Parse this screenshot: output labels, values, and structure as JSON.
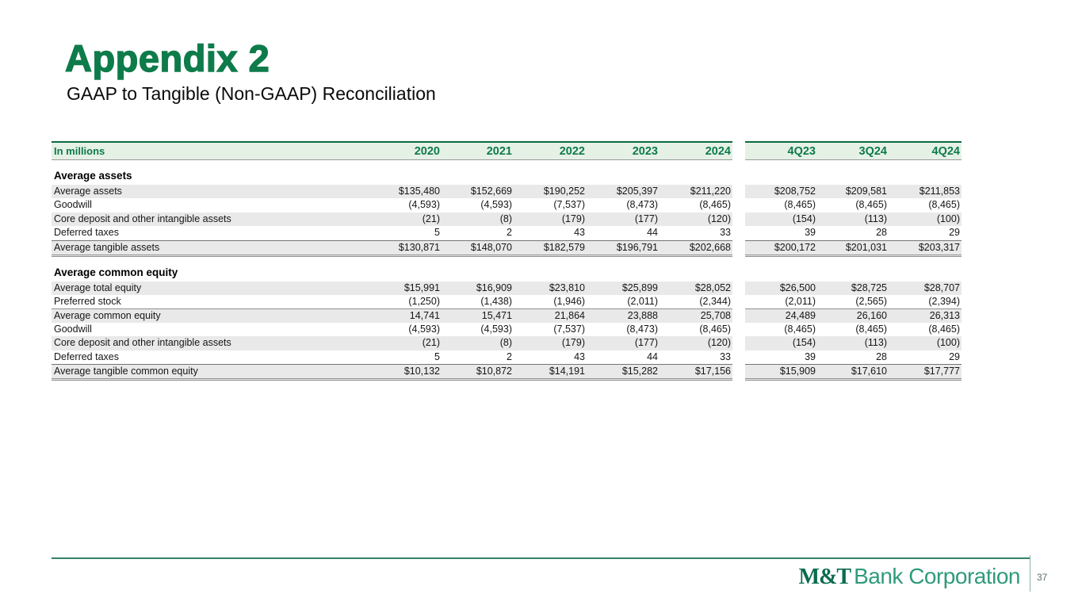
{
  "slide": {
    "title": "Appendix 2",
    "subtitle": "GAAP to Tangible (Non-GAAP) Reconciliation",
    "page_number": "37",
    "logo_mt": "M&T",
    "logo_rest": "Bank Corporation"
  },
  "colors": {
    "brand_green": "#0e7b4b",
    "header_band_bg": "#e6f1e6",
    "header_band_border": "#0b6b42",
    "row_stripe": "#e9e9e9",
    "logo_green": "#2f9b7b",
    "footer_line_green": "#31836a"
  },
  "table": {
    "unit_label": "In millions",
    "columns": [
      "2020",
      "2021",
      "2022",
      "2023",
      "2024",
      "4Q23",
      "3Q24",
      "4Q24"
    ],
    "sections": [
      {
        "heading": "Average assets",
        "rows": [
          {
            "label": "Average assets",
            "style": "shaded",
            "values": [
              "$135,480",
              "$152,669",
              "$190,252",
              "$205,397",
              "$211,220",
              "$208,752",
              "$209,581",
              "$211,853"
            ]
          },
          {
            "label": "Goodwill",
            "style": "plain",
            "values": [
              "(4,593)",
              "(4,593)",
              "(7,537)",
              "(8,473)",
              "(8,465)",
              "(8,465)",
              "(8,465)",
              "(8,465)"
            ]
          },
          {
            "label": "Core deposit and other intangible assets",
            "style": "shaded",
            "values": [
              "(21)",
              "(8)",
              "(179)",
              "(177)",
              "(120)",
              "(154)",
              "(113)",
              "(100)"
            ]
          },
          {
            "label": "Deferred taxes",
            "style": "plain",
            "values": [
              "5",
              "2",
              "43",
              "44",
              "33",
              "39",
              "28",
              "29"
            ]
          },
          {
            "label": "Average tangible assets",
            "style": "total",
            "values": [
              "$130,871",
              "$148,070",
              "$182,579",
              "$196,791",
              "$202,668",
              "$200,172",
              "$201,031",
              "$203,317"
            ]
          }
        ]
      },
      {
        "heading": "Average common equity",
        "rows": [
          {
            "label": "Average total equity",
            "style": "shaded",
            "values": [
              "$15,991",
              "$16,909",
              "$23,810",
              "$25,899",
              "$28,052",
              "$26,500",
              "$28,725",
              "$28,707"
            ]
          },
          {
            "label": "Preferred stock",
            "style": "plain",
            "values": [
              "(1,250)",
              "(1,438)",
              "(1,946)",
              "(2,011)",
              "(2,344)",
              "(2,011)",
              "(2,565)",
              "(2,394)"
            ]
          },
          {
            "label": "Average common equity",
            "style": "shaded subtop",
            "values": [
              "14,741",
              "15,471",
              "21,864",
              "23,888",
              "25,708",
              "24,489",
              "26,160",
              "26,313"
            ]
          },
          {
            "label": "Goodwill",
            "style": "plain",
            "values": [
              "(4,593)",
              "(4,593)",
              "(7,537)",
              "(8,473)",
              "(8,465)",
              "(8,465)",
              "(8,465)",
              "(8,465)"
            ]
          },
          {
            "label": "Core deposit and other intangible assets",
            "style": "shaded",
            "values": [
              "(21)",
              "(8)",
              "(179)",
              "(177)",
              "(120)",
              "(154)",
              "(113)",
              "(100)"
            ]
          },
          {
            "label": "Deferred taxes",
            "style": "plain",
            "values": [
              "5",
              "2",
              "43",
              "44",
              "33",
              "39",
              "28",
              "29"
            ]
          },
          {
            "label": "Average tangible common equity",
            "style": "total",
            "values": [
              "$10,132",
              "$10,872",
              "$14,191",
              "$15,282",
              "$17,156",
              "$15,909",
              "$17,610",
              "$17,777"
            ]
          }
        ]
      }
    ]
  }
}
